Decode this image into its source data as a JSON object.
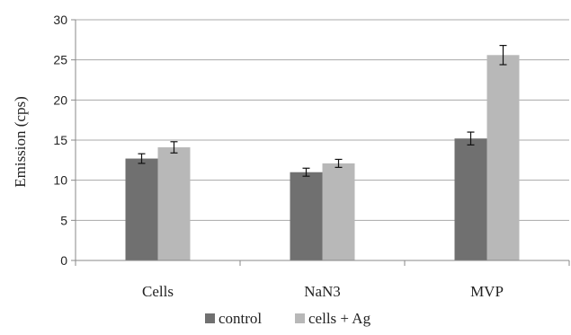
{
  "chart_data": {
    "type": "bar",
    "title": "",
    "xlabel": "",
    "ylabel": "Emission (cps)",
    "ylim": [
      0,
      30
    ],
    "yticks": [
      0,
      5,
      10,
      15,
      20,
      25,
      30
    ],
    "grid": true,
    "legend_position": "bottom",
    "categories": [
      "Cells",
      "NaN3",
      "MVP"
    ],
    "series": [
      {
        "name": "control",
        "color": "#707070",
        "values": [
          12.7,
          11.0,
          15.2
        ],
        "errors": [
          0.6,
          0.5,
          0.8
        ]
      },
      {
        "name": "cells + Ag",
        "color": "#b8b8b8",
        "values": [
          14.1,
          12.1,
          25.6
        ],
        "errors": [
          0.7,
          0.5,
          1.2
        ]
      }
    ]
  }
}
